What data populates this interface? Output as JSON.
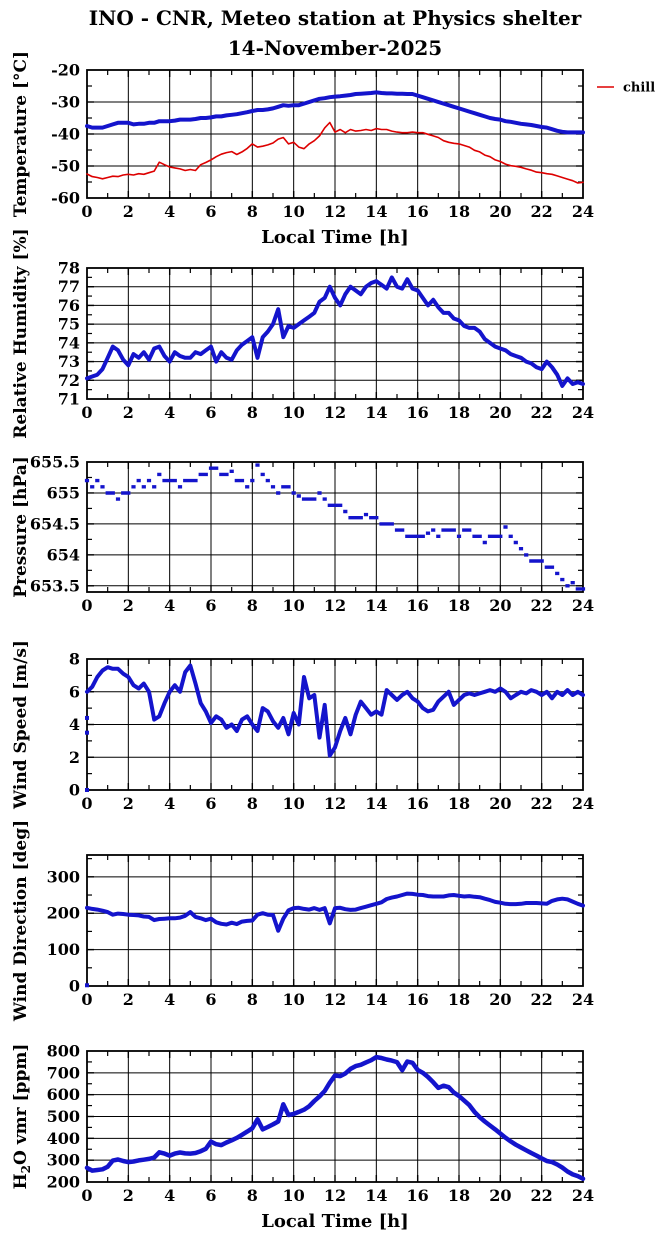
{
  "page": {
    "title_line1": "INO - CNR, Meteo station at Physics shelter",
    "title_line2": "14-November-2025"
  },
  "colors": {
    "line_blue": "#1414cc",
    "line_red": "#dd0000",
    "axis": "#000000"
  },
  "xaxis": {
    "label": "Local Time [h]",
    "range": [
      0,
      24
    ],
    "ticks": [
      0,
      2,
      4,
      6,
      8,
      10,
      12,
      14,
      16,
      18,
      20,
      22,
      24
    ],
    "tick_labels": [
      "0",
      "2",
      "4",
      "6",
      "8",
      "10",
      "12",
      "14",
      "16",
      "18",
      "20",
      "22",
      "24"
    ],
    "minor_step": 1
  },
  "chart_data": [
    {
      "id": "temperature",
      "type": "line",
      "ylabel_parts": [
        {
          "text": "Temperature [°C]"
        }
      ],
      "ylim": [
        -60,
        -20
      ],
      "yticks": [
        -60,
        -50,
        -40,
        -30,
        -20
      ],
      "ytick_labels": [
        "-60",
        "-50",
        "-40",
        "-30",
        "-20"
      ],
      "yminor_step": 5,
      "show_xlabel": true,
      "legend": {
        "label": "chill",
        "color": "line_red"
      },
      "series": [
        {
          "name": "air-temperature",
          "color": "line_blue",
          "width": 4,
          "style": "line",
          "x0": 0,
          "dx": 0.25,
          "values": [
            -37.5,
            -38,
            -38,
            -38,
            -37.5,
            -37,
            -36.5,
            -36.5,
            -36.5,
            -37,
            -36.8,
            -36.8,
            -36.5,
            -36.5,
            -36,
            -36,
            -36,
            -35.8,
            -35.5,
            -35.5,
            -35.5,
            -35.3,
            -35,
            -35,
            -34.8,
            -34.5,
            -34.5,
            -34.2,
            -34,
            -33.8,
            -33.5,
            -33.2,
            -32.8,
            -32.5,
            -32.5,
            -32.3,
            -32,
            -31.5,
            -31,
            -31.2,
            -31,
            -31,
            -30.5,
            -30,
            -29.5,
            -29,
            -28.8,
            -28.5,
            -28.3,
            -28.2,
            -28,
            -27.8,
            -27.5,
            -27.4,
            -27.3,
            -27.2,
            -27,
            -27.2,
            -27.3,
            -27.3,
            -27.4,
            -27.4,
            -27.5,
            -27.5,
            -28,
            -28.5,
            -29,
            -29.5,
            -30,
            -30.5,
            -31,
            -31.5,
            -32,
            -32.5,
            -33,
            -33.5,
            -34,
            -34.5,
            -35,
            -35.3,
            -35.5,
            -36,
            -36.2,
            -36.5,
            -36.8,
            -37,
            -37.2,
            -37.5,
            -37.8,
            -38,
            -38.5,
            -39,
            -39.3,
            -39.5,
            -39.5,
            -39.5,
            -39.5
          ]
        },
        {
          "name": "wind-chill",
          "color": "line_red",
          "width": 1.6,
          "style": "line",
          "x0": 0,
          "dx": 0.25,
          "values": [
            -52.5,
            -53.3,
            -53.6,
            -54,
            -53.6,
            -53.2,
            -53.3,
            -52.8,
            -52.6,
            -52.8,
            -52.4,
            -52.6,
            -52.1,
            -51.6,
            -48.8,
            -49.6,
            -50.3,
            -50.6,
            -50.9,
            -51.4,
            -51.1,
            -51.4,
            -49.6,
            -48.9,
            -48.1,
            -47.1,
            -46.3,
            -45.8,
            -45.5,
            -46.4,
            -45.6,
            -44.5,
            -43.1,
            -44.1,
            -43.8,
            -43.4,
            -42.8,
            -41.6,
            -41.1,
            -43.1,
            -42.6,
            -44.1,
            -44.6,
            -43.1,
            -42.1,
            -40.6,
            -38.1,
            -36.4,
            -39.4,
            -38.6,
            -39.6,
            -38.6,
            -39.1,
            -38.9,
            -38.6,
            -38.9,
            -38.3,
            -38.6,
            -38.6,
            -39.1,
            -39.4,
            -39.6,
            -39.6,
            -39.4,
            -39.6,
            -39.6,
            -40.1,
            -40.6,
            -41.1,
            -42.1,
            -42.6,
            -42.9,
            -43.1,
            -43.6,
            -44.1,
            -45.1,
            -45.6,
            -46.6,
            -47.1,
            -48.1,
            -48.6,
            -49.4,
            -49.9,
            -50.1,
            -50.4,
            -50.9,
            -51.3,
            -51.9,
            -52.1,
            -52.4,
            -52.6,
            -53.1,
            -53.6,
            -54.1,
            -54.6,
            -55.3,
            -55.1
          ]
        }
      ]
    },
    {
      "id": "humidity",
      "type": "line",
      "ylabel_parts": [
        {
          "text": "Relative Humidity [%]"
        }
      ],
      "ylim": [
        71,
        78
      ],
      "yticks": [
        71,
        72,
        73,
        74,
        75,
        76,
        77,
        78
      ],
      "ytick_labels": [
        "71",
        "72",
        "73",
        "74",
        "75",
        "76",
        "77",
        "78"
      ],
      "yminor_step": 0.5,
      "show_xlabel": false,
      "series": [
        {
          "name": "relative-humidity",
          "color": "line_blue",
          "width": 4,
          "style": "line",
          "x0": 0,
          "dx": 0.25,
          "values": [
            72.1,
            72.2,
            72.3,
            72.6,
            73.2,
            73.8,
            73.6,
            73.1,
            72.8,
            73.4,
            73.2,
            73.5,
            73.1,
            73.7,
            73.8,
            73.3,
            73.0,
            73.5,
            73.3,
            73.2,
            73.2,
            73.5,
            73.4,
            73.6,
            73.8,
            73.0,
            73.5,
            73.2,
            73.1,
            73.6,
            73.9,
            74.1,
            74.3,
            73.2,
            74.3,
            74.6,
            75.0,
            75.8,
            74.3,
            74.9,
            74.8,
            75.0,
            75.2,
            75.4,
            75.6,
            76.2,
            76.4,
            77.0,
            76.4,
            76.0,
            76.6,
            77.0,
            76.8,
            76.6,
            77.0,
            77.2,
            77.3,
            77.1,
            76.9,
            77.5,
            77.0,
            76.9,
            77.4,
            76.9,
            76.8,
            76.4,
            76.0,
            76.3,
            75.9,
            75.6,
            75.6,
            75.3,
            75.2,
            74.9,
            74.8,
            74.8,
            74.6,
            74.2,
            74.0,
            73.8,
            73.7,
            73.6,
            73.4,
            73.3,
            73.2,
            73.0,
            72.9,
            72.7,
            72.6,
            73.0,
            72.7,
            72.3,
            71.7,
            72.1,
            71.8,
            71.9,
            71.8
          ]
        }
      ]
    },
    {
      "id": "pressure",
      "type": "line",
      "ylabel_parts": [
        {
          "text": "Pressure [hPa]"
        }
      ],
      "ylim": [
        653.4,
        655.5
      ],
      "yticks": [
        653.5,
        654,
        654.5,
        655,
        655.5
      ],
      "ytick_labels": [
        "653.5",
        "654",
        "654.5",
        "655",
        "655.5"
      ],
      "yminor_step": 0.25,
      "show_xlabel": false,
      "series": [
        {
          "name": "pressure",
          "color": "line_blue",
          "width": 3.4,
          "style": "bars",
          "x0": 0,
          "dx": 0.25,
          "values": [
            655.2,
            655.1,
            655.2,
            655.1,
            655.0,
            655.0,
            654.9,
            655.0,
            655.0,
            655.1,
            655.2,
            655.1,
            655.2,
            655.1,
            655.3,
            655.2,
            655.2,
            655.2,
            655.1,
            655.2,
            655.2,
            655.2,
            655.3,
            655.3,
            655.4,
            655.4,
            655.3,
            655.3,
            655.35,
            655.2,
            655.2,
            655.1,
            655.2,
            655.45,
            655.3,
            655.2,
            655.1,
            655.0,
            655.1,
            655.1,
            655.0,
            654.95,
            654.9,
            654.9,
            654.9,
            655.0,
            654.9,
            654.8,
            654.8,
            654.8,
            654.7,
            654.6,
            654.6,
            654.6,
            654.65,
            654.6,
            654.6,
            654.5,
            654.5,
            654.5,
            654.4,
            654.4,
            654.3,
            654.3,
            654.3,
            654.3,
            654.35,
            654.4,
            654.3,
            654.4,
            654.4,
            654.4,
            654.3,
            654.4,
            654.4,
            654.3,
            654.3,
            654.2,
            654.3,
            654.3,
            654.3,
            654.45,
            654.3,
            654.2,
            654.1,
            654.0,
            653.9,
            653.9,
            653.9,
            653.8,
            653.8,
            653.7,
            653.6,
            653.5,
            653.55,
            653.45,
            653.45
          ]
        }
      ]
    },
    {
      "id": "wind-speed",
      "type": "line",
      "ylabel_parts": [
        {
          "text": "Wind Speed [m/s]"
        }
      ],
      "ylim": [
        0,
        8
      ],
      "yticks": [
        0,
        2,
        4,
        6,
        8
      ],
      "ytick_labels": [
        "0",
        "2",
        "4",
        "6",
        "8"
      ],
      "yminor_step": 1,
      "show_xlabel": false,
      "series": [
        {
          "name": "wind-speed",
          "color": "line_blue",
          "width": 4,
          "style": "line",
          "x0": 0,
          "dx": 0.25,
          "dots": [
            [
              0,
              0
            ],
            [
              0,
              3.5
            ],
            [
              0,
              4.4
            ]
          ],
          "values": [
            6.0,
            6.3,
            6.9,
            7.3,
            7.5,
            7.4,
            7.4,
            7.1,
            6.9,
            6.4,
            6.2,
            6.5,
            6.0,
            4.3,
            4.5,
            5.3,
            6.0,
            6.4,
            6.0,
            7.2,
            7.6,
            6.5,
            5.3,
            4.8,
            4.1,
            4.5,
            4.3,
            3.8,
            4.0,
            3.6,
            4.3,
            4.5,
            4.0,
            3.6,
            5.0,
            4.8,
            4.2,
            3.8,
            4.4,
            3.4,
            4.7,
            4.0,
            6.9,
            5.6,
            5.8,
            3.2,
            5.2,
            2.1,
            2.6,
            3.6,
            4.4,
            3.4,
            4.6,
            5.4,
            5.0,
            4.6,
            4.8,
            4.6,
            6.1,
            5.8,
            5.5,
            5.8,
            6.0,
            5.6,
            5.4,
            5.0,
            4.8,
            4.9,
            5.4,
            5.7,
            6.0,
            5.2,
            5.5,
            5.8,
            5.9,
            5.8,
            5.9,
            6.0,
            6.1,
            6.0,
            6.2,
            6.0,
            5.6,
            5.8,
            6.0,
            5.9,
            6.1,
            6.0,
            5.8,
            6.0,
            5.6,
            6.0,
            5.8,
            6.1,
            5.8,
            6.0,
            5.8
          ]
        }
      ]
    },
    {
      "id": "wind-direction",
      "type": "line",
      "ylabel_parts": [
        {
          "text": "Wind Direction [deg]"
        }
      ],
      "ylim": [
        0,
        360
      ],
      "yticks": [
        0,
        100,
        200,
        300
      ],
      "ytick_labels": [
        "0",
        "100",
        "200",
        "300"
      ],
      "yminor_step": 50,
      "show_xlabel": false,
      "series": [
        {
          "name": "wind-direction",
          "color": "line_blue",
          "width": 4,
          "style": "line",
          "x0": 0,
          "dx": 0.25,
          "dots": [
            [
              0,
              2
            ]
          ],
          "values": [
            215,
            212,
            210,
            207,
            203,
            196,
            199,
            198,
            196,
            195,
            194,
            191,
            190,
            181,
            184,
            185,
            186,
            186,
            188,
            193,
            203,
            190,
            186,
            181,
            185,
            175,
            171,
            169,
            174,
            170,
            177,
            179,
            180,
            196,
            200,
            196,
            195,
            152,
            185,
            208,
            214,
            215,
            212,
            210,
            214,
            209,
            214,
            172,
            214,
            215,
            211,
            209,
            210,
            214,
            218,
            222,
            226,
            230,
            239,
            243,
            246,
            250,
            254,
            253,
            251,
            250,
            247,
            246,
            246,
            246,
            249,
            250,
            248,
            246,
            247,
            245,
            244,
            240,
            236,
            231,
            229,
            226,
            225,
            225,
            226,
            228,
            228,
            228,
            227,
            226,
            234,
            238,
            240,
            238,
            232,
            226,
            221
          ]
        }
      ]
    },
    {
      "id": "h2o-vmr",
      "type": "line",
      "ylabel_parts": [
        {
          "text": "H"
        },
        {
          "text": "2",
          "sub": true
        },
        {
          "text": "O vmr [ppm]",
          "after_sub": true
        }
      ],
      "ylim": [
        200,
        800
      ],
      "yticks": [
        200,
        300,
        400,
        500,
        600,
        700,
        800
      ],
      "ytick_labels": [
        "200",
        "300",
        "400",
        "500",
        "600",
        "700",
        "800"
      ],
      "yminor_step": 50,
      "show_xlabel": true,
      "series": [
        {
          "name": "h2o-vmr",
          "color": "line_blue",
          "width": 4.5,
          "style": "line",
          "x0": 0,
          "dx": 0.25,
          "values": [
            265,
            252,
            255,
            258,
            270,
            298,
            303,
            296,
            291,
            294,
            299,
            302,
            306,
            312,
            336,
            330,
            321,
            330,
            335,
            331,
            330,
            333,
            341,
            352,
            385,
            373,
            369,
            381,
            391,
            402,
            416,
            431,
            446,
            487,
            441,
            452,
            464,
            477,
            556,
            507,
            512,
            521,
            531,
            547,
            571,
            592,
            617,
            655,
            688,
            685,
            697,
            718,
            731,
            737,
            748,
            758,
            772,
            768,
            761,
            756,
            749,
            712,
            752,
            746,
            713,
            700,
            681,
            657,
            631,
            641,
            634,
            610,
            594,
            573,
            552,
            521,
            497,
            477,
            459,
            441,
            422,
            403,
            386,
            371,
            358,
            345,
            333,
            321,
            308,
            296,
            291,
            280,
            266,
            248,
            235,
            227,
            215
          ]
        }
      ]
    }
  ]
}
